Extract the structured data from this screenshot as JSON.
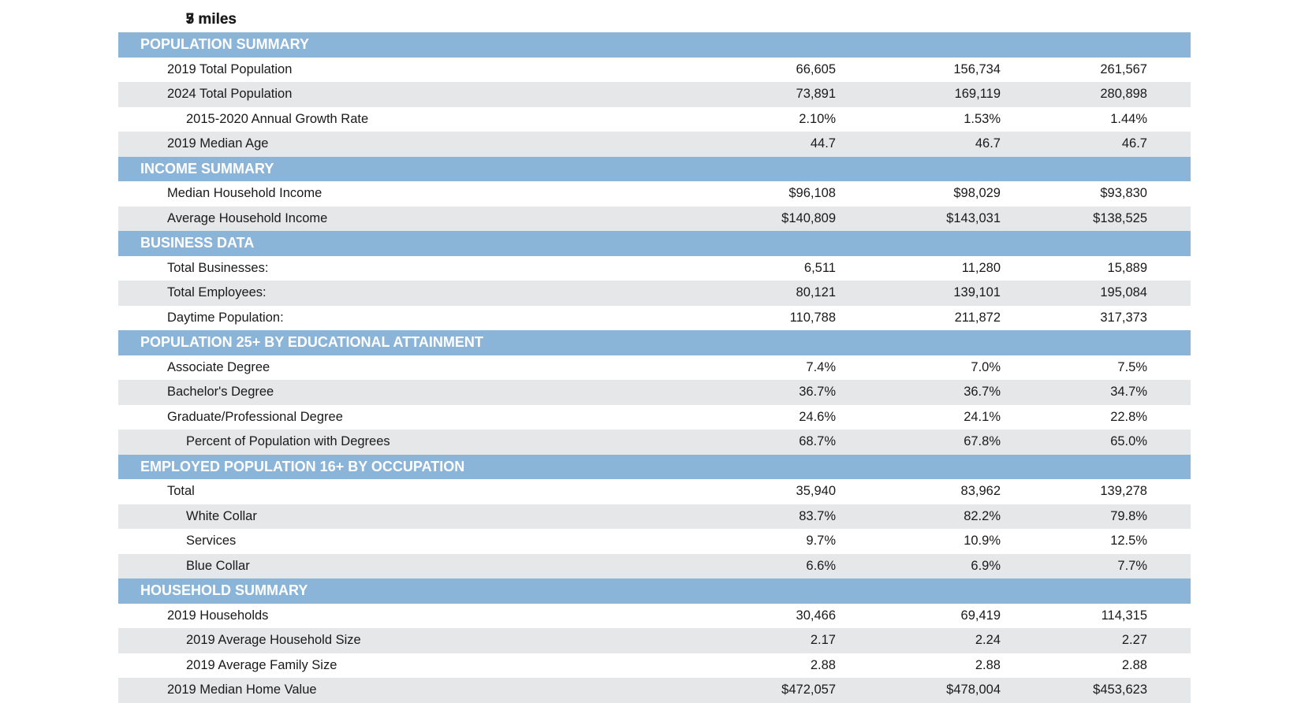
{
  "columns": [
    "3 miles",
    "5 miles",
    "7 miles"
  ],
  "rows": [
    {
      "type": "section",
      "label": "POPULATION SUMMARY"
    },
    {
      "type": "data",
      "indent": 1,
      "label": "2019 Total Population",
      "values": [
        "66,605",
        "156,734",
        "261,567"
      ]
    },
    {
      "type": "data",
      "indent": 1,
      "label": "2024 Total Population",
      "values": [
        "73,891",
        "169,119",
        "280,898"
      ]
    },
    {
      "type": "data",
      "indent": 2,
      "label": "2015-2020 Annual Growth Rate",
      "values": [
        "2.10%",
        "1.53%",
        "1.44%"
      ]
    },
    {
      "type": "data",
      "indent": 1,
      "label": "2019 Median Age",
      "values": [
        "44.7",
        "46.7",
        "46.7"
      ]
    },
    {
      "type": "section",
      "label": "INCOME SUMMARY"
    },
    {
      "type": "data",
      "indent": 1,
      "label": "Median Household Income",
      "values": [
        "$96,108",
        "$98,029",
        "$93,830"
      ]
    },
    {
      "type": "data",
      "indent": 1,
      "label": "Average Household Income",
      "values": [
        "$140,809",
        "$143,031",
        "$138,525"
      ]
    },
    {
      "type": "section",
      "label": "BUSINESS DATA"
    },
    {
      "type": "data",
      "indent": 1,
      "label": "Total Businesses:",
      "values": [
        "6,511",
        "11,280",
        "15,889"
      ]
    },
    {
      "type": "data",
      "indent": 1,
      "label": "Total Employees:",
      "values": [
        "80,121",
        "139,101",
        "195,084"
      ]
    },
    {
      "type": "data",
      "indent": 1,
      "label": "Daytime Population:",
      "values": [
        "110,788",
        "211,872",
        "317,373"
      ]
    },
    {
      "type": "section",
      "label": "POPULATION 25+ BY EDUCATIONAL ATTAINMENT"
    },
    {
      "type": "data",
      "indent": 1,
      "label": "Associate Degree",
      "values": [
        "7.4%",
        "7.0%",
        "7.5%"
      ]
    },
    {
      "type": "data",
      "indent": 1,
      "label": "Bachelor's Degree",
      "values": [
        "36.7%",
        "36.7%",
        "34.7%"
      ]
    },
    {
      "type": "data",
      "indent": 1,
      "label": "Graduate/Professional Degree",
      "values": [
        "24.6%",
        "24.1%",
        "22.8%"
      ]
    },
    {
      "type": "data",
      "indent": 2,
      "label": "Percent of Population with Degrees",
      "values": [
        "68.7%",
        "67.8%",
        "65.0%"
      ]
    },
    {
      "type": "section",
      "label": "EMPLOYED POPULATION 16+ BY OCCUPATION"
    },
    {
      "type": "data",
      "indent": 1,
      "label": "Total",
      "values": [
        "35,940",
        "83,962",
        "139,278"
      ]
    },
    {
      "type": "data",
      "indent": 2,
      "label": "White Collar",
      "values": [
        "83.7%",
        "82.2%",
        "79.8%"
      ]
    },
    {
      "type": "data",
      "indent": 2,
      "label": "Services",
      "values": [
        "9.7%",
        "10.9%",
        "12.5%"
      ]
    },
    {
      "type": "data",
      "indent": 2,
      "label": "Blue Collar",
      "values": [
        "6.6%",
        "6.9%",
        "7.7%"
      ]
    },
    {
      "type": "section",
      "label": "HOUSEHOLD SUMMARY"
    },
    {
      "type": "data",
      "indent": 1,
      "label": "2019 Households",
      "values": [
        "30,466",
        "69,419",
        "114,315"
      ]
    },
    {
      "type": "data",
      "indent": 2,
      "label": "2019 Average Household Size",
      "values": [
        "2.17",
        "2.24",
        "2.27"
      ]
    },
    {
      "type": "data",
      "indent": 2,
      "label": "2019 Average Family Size",
      "values": [
        "2.88",
        "2.88",
        "2.88"
      ]
    },
    {
      "type": "data",
      "indent": 1,
      "label": "2019 Median Home Value",
      "values": [
        "$472,057",
        "$478,004",
        "$453,623"
      ]
    }
  ],
  "colors": {
    "section_bg": "#8bb4d9",
    "alt_row_bg": "#e6e7e9",
    "section_text": "#ffffff"
  }
}
